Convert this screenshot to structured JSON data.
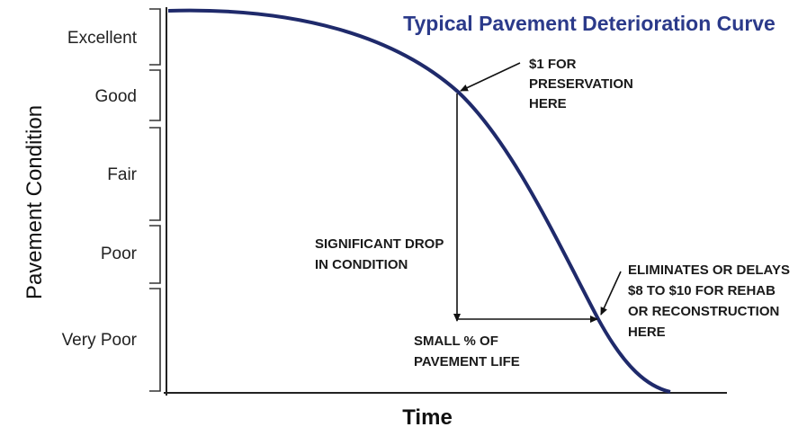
{
  "title": "Typical Pavement Deterioration Curve",
  "y_axis_label": "Pavement Condition",
  "x_axis_label": "Time",
  "condition_levels": [
    "Excellent",
    "Good",
    "Fair",
    "Poor",
    "Very Poor"
  ],
  "annotations": {
    "preservation": [
      "$1 FOR",
      "PRESERVATION",
      "HERE"
    ],
    "drop": [
      "SIGNIFICANT DROP",
      "IN CONDITION"
    ],
    "life": [
      "SMALL % OF",
      "PAVEMENT LIFE"
    ],
    "rehab": [
      "ELIMINATES OR DELAYS",
      "$8 TO $10 FOR REHAB",
      "OR RECONSTRUCTION",
      "HERE"
    ]
  }
}
